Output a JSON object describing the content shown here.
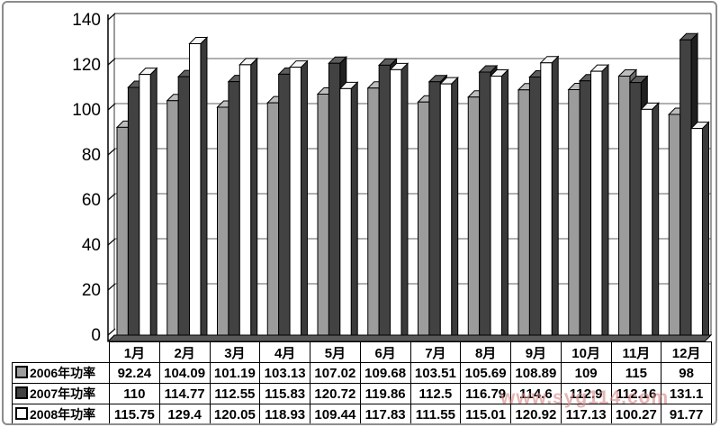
{
  "chart_data": {
    "type": "bar",
    "style": "3d-column",
    "title": "",
    "xlabel": "",
    "ylabel": "",
    "categories": [
      "1月",
      "2月",
      "3月",
      "4月",
      "5月",
      "6月",
      "7月",
      "8月",
      "9月",
      "10月",
      "11月",
      "12月"
    ],
    "series": [
      {
        "name": "2006年功率",
        "color": "#9c9c9c",
        "top_color": "#bdbdbd",
        "side_color": "#6b6b6b",
        "values": [
          92.24,
          104.09,
          101.19,
          103.13,
          107.02,
          109.68,
          103.51,
          105.69,
          108.89,
          109,
          115,
          98
        ]
      },
      {
        "name": "2007年功率",
        "color": "#424242",
        "top_color": "#5e5e5e",
        "side_color": "#1f1f1f",
        "values": [
          110,
          114.77,
          112.55,
          115.83,
          120.72,
          119.86,
          112.5,
          116.79,
          114.6,
          112.9,
          112.16,
          131.1
        ]
      },
      {
        "name": "2008年功率",
        "color": "#ffffff",
        "top_color": "#f5f5f5",
        "side_color": "#3a3a3a",
        "values": [
          115.75,
          129.4,
          120.05,
          118.93,
          109.44,
          117.83,
          111.55,
          115.01,
          120.92,
          117.13,
          100.27,
          91.77
        ]
      }
    ],
    "ylim": [
      0,
      140
    ],
    "ytick_step": 20,
    "y_tick_labels": [
      "0",
      "20",
      "40",
      "60",
      "80",
      "100",
      "120",
      "140"
    ],
    "grid": true,
    "legend_position": "table-left",
    "gridline_color": "#808080",
    "wall_edge_color": "#595959",
    "floor_color": "#595959"
  },
  "watermark": {
    "text": "www.syg114.com"
  }
}
